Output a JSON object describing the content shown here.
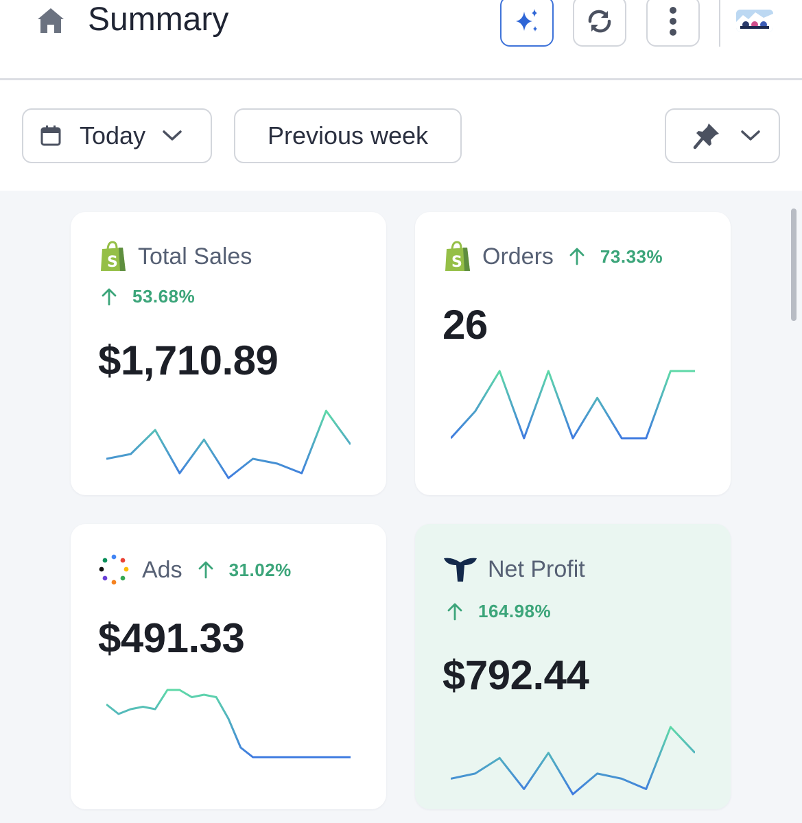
{
  "header": {
    "title": "Summary",
    "buttons": {
      "ai": "sparkle-icon",
      "refresh": "refresh-icon",
      "more": "more-vertical-icon"
    }
  },
  "toolbar": {
    "date_range": "Today",
    "compare": "Previous week"
  },
  "colors": {
    "accent": "#3f73d9",
    "positive": "#3ca57a",
    "profit_card_bg": "#eaf6f1",
    "spark_start": "#3f7be0",
    "spark_end": "#5fd9a8"
  },
  "cards": {
    "total_sales": {
      "title": "Total Sales",
      "change": "53.68%",
      "value": "$1,710.89",
      "icon": "shopify-icon",
      "trend": [
        4,
        5,
        10,
        1,
        8,
        0,
        4,
        3,
        1,
        14,
        7
      ]
    },
    "orders": {
      "title": "Orders",
      "change": "73.33%",
      "value": "26",
      "icon": "shopify-icon",
      "trend": [
        0,
        2,
        5,
        0,
        5,
        0,
        3,
        0,
        0,
        5,
        5
      ]
    },
    "ads": {
      "title": "Ads",
      "change": "31.02%",
      "value": "$491.33",
      "icon": "ads-dots-icon",
      "trend": [
        11,
        9,
        10,
        10.5,
        10,
        14,
        14,
        12.5,
        13,
        12.5,
        8,
        2,
        0,
        0,
        0,
        0,
        0,
        0,
        0,
        0,
        0
      ]
    },
    "net_profit": {
      "title": "Net Profit",
      "change": "164.98%",
      "value": "$792.44",
      "icon": "triple-whale-icon",
      "trend": [
        4,
        5,
        8,
        2,
        9,
        1,
        5,
        4,
        2,
        14,
        9
      ]
    }
  }
}
